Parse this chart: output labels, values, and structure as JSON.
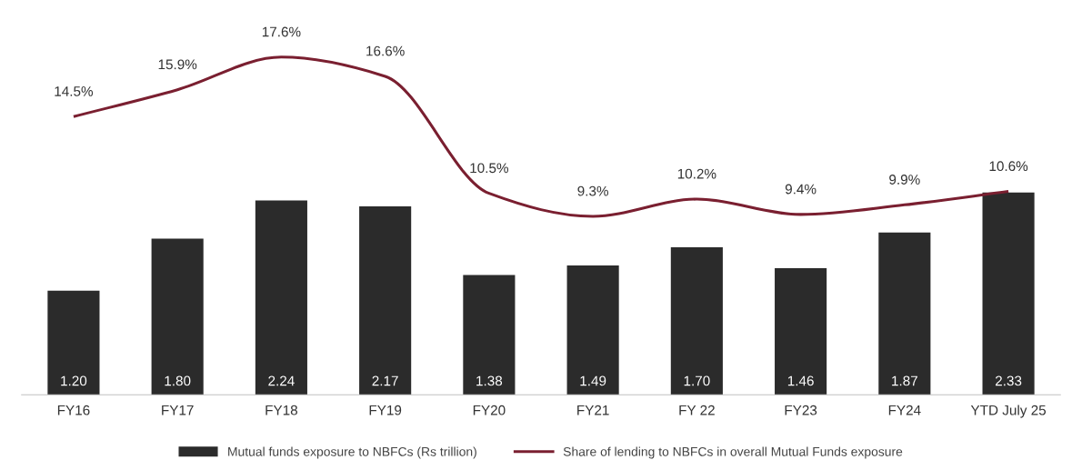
{
  "chart_data": {
    "type": "bar",
    "categories": [
      "FY16",
      "FY17",
      "FY18",
      "FY19",
      "FY20",
      "FY21",
      "FY 22",
      "FY23",
      "FY24",
      "YTD July 25"
    ],
    "series": [
      {
        "name": "Mutual funds exposure to NBFCs (Rs trillion)",
        "color": "#2b2b2b",
        "values": [
          1.2,
          1.8,
          2.24,
          2.17,
          1.38,
          1.49,
          1.7,
          1.46,
          1.87,
          2.33
        ],
        "value_labels": [
          "1.20",
          "1.80",
          "2.24",
          "2.17",
          "1.38",
          "1.49",
          "1.70",
          "1.46",
          "1.87",
          "2.33"
        ]
      },
      {
        "name": "Share of lending to NBFCs in overall Mutual Funds exposure",
        "type": "line",
        "axis": "y2",
        "color": "#7a1f30",
        "values": [
          14.5,
          15.9,
          17.6,
          16.6,
          10.5,
          9.3,
          10.2,
          9.4,
          9.9,
          10.6
        ],
        "value_labels": [
          "14.5%",
          "15.9%",
          "17.6%",
          "16.6%",
          "10.5%",
          "9.3%",
          "10.2%",
          "9.4%",
          "9.9%",
          "10.6%"
        ]
      }
    ],
    "tick_labels": "x",
    "grid": false,
    "legend": "bottom",
    "marker": "none",
    "line_style": "solid"
  }
}
